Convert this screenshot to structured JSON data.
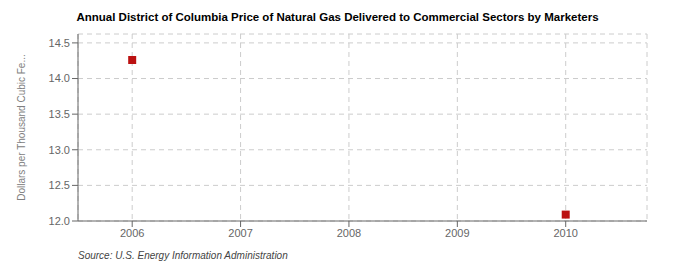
{
  "chart_data": {
    "type": "scatter",
    "title": "Annual District of Columbia Price of Natural Gas Delivered to Commercial Sectors by Marketers",
    "ylabel": "Dollars per Thousand Cubic Fe...",
    "annotations": [
      "Source: U.S. Energy Information Administration"
    ],
    "x": [
      2006,
      2010
    ],
    "values": [
      14.26,
      12.09
    ],
    "color": "#bb1111",
    "marker": "square",
    "xlim": [
      2005.5,
      2010.75
    ],
    "ylim": [
      12.0,
      14.625
    ],
    "xticks": [
      2006,
      2007,
      2008,
      2009,
      2010
    ],
    "yticks": [
      {
        "value": 12.0,
        "label": "12.0"
      },
      12.5,
      {
        "value": 13.0,
        "label": "13.0"
      },
      13.5,
      {
        "value": 14.0,
        "label": "14.0"
      },
      14.5
    ],
    "grid": true
  }
}
